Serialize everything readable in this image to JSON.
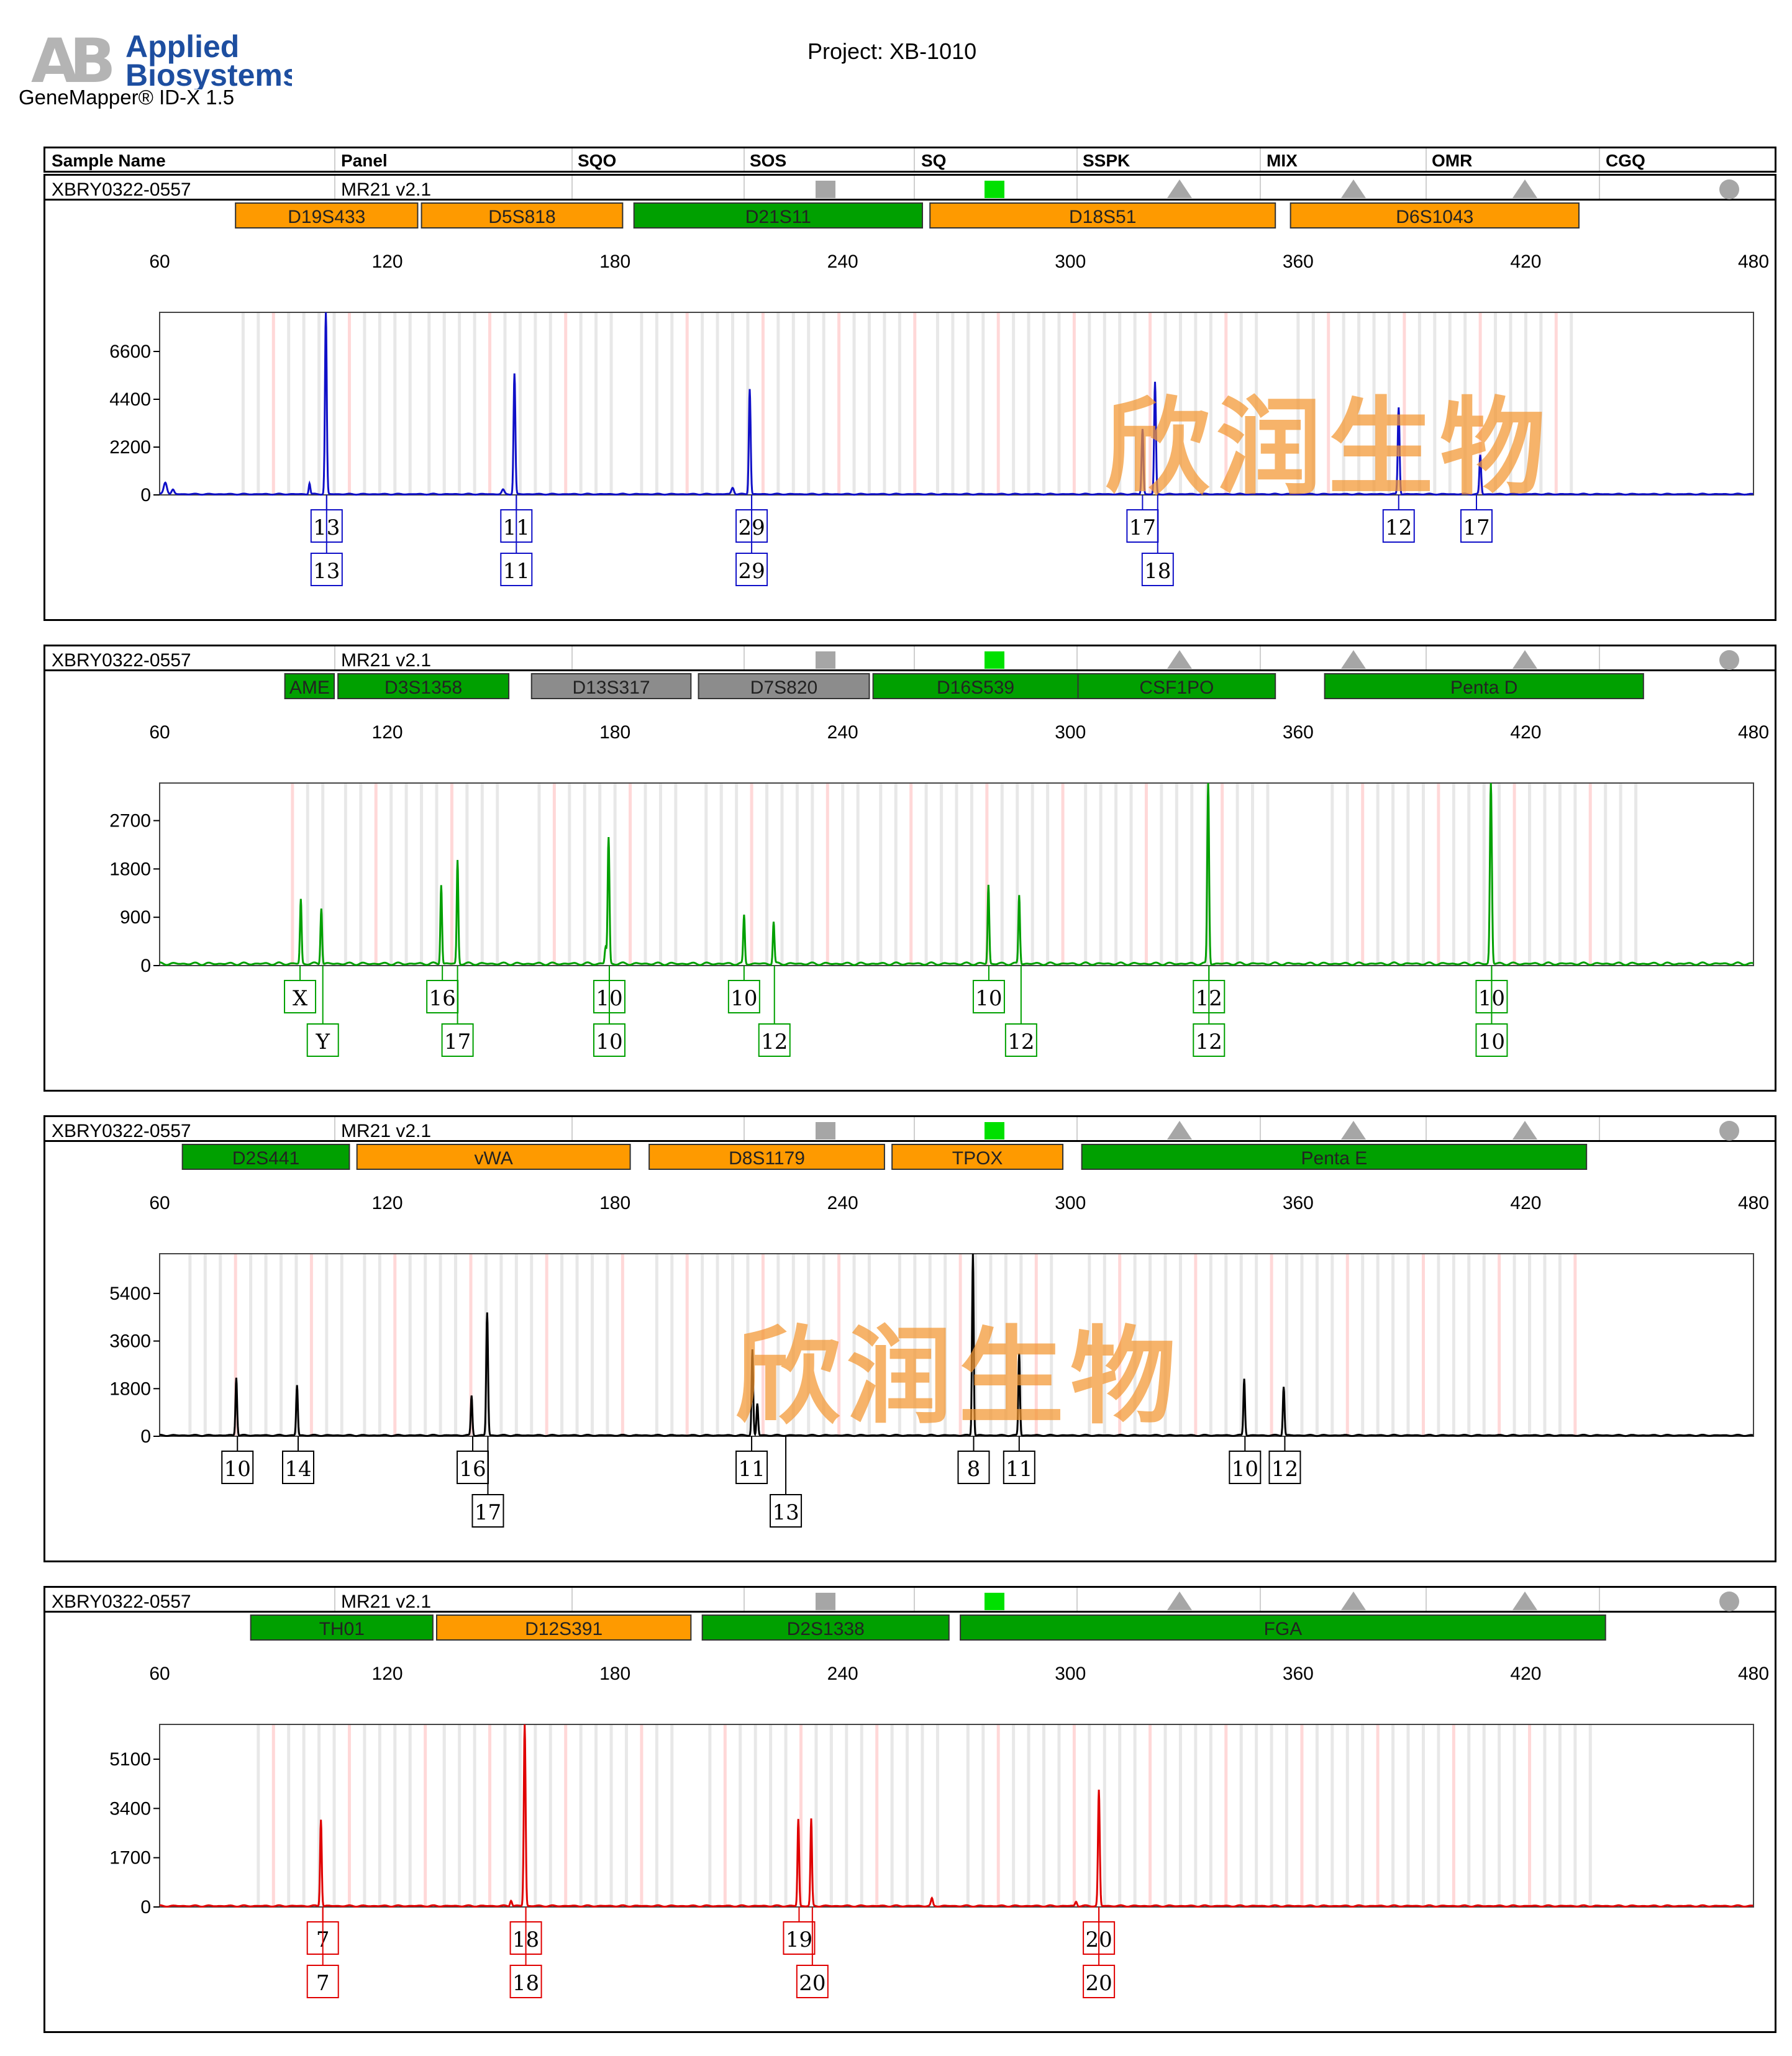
{
  "header": {
    "brand_line1": "Applied",
    "brand_line2": "Biosystems",
    "brand_mark": "AB",
    "software": "GeneMapper® ID-X  1.5",
    "project": "Project: XB-1010"
  },
  "columns": [
    "Sample Name",
    "Panel",
    "SQO",
    "SOS",
    "SQ",
    "SSPK",
    "MIX",
    "OMR",
    "CGQ"
  ],
  "watermark": "欣润生物",
  "colors": {
    "orange": "#fe9a00",
    "green": "#00a000",
    "gray": "#8c8c8c",
    "sq_green": "#00e000",
    "indicator_gray": "#a6a6a6",
    "grid_gray": "#e8e8e8",
    "grid_pink": "#ffd8d8"
  },
  "chart_data": [
    {
      "type": "line",
      "sample_name": "XBRY0322-0557",
      "panel": "MR21  v2.1",
      "dye_color": "#1010c8",
      "xlim": [
        60,
        480
      ],
      "x_ticks": [
        60,
        120,
        180,
        240,
        300,
        360,
        420,
        480
      ],
      "ylim": [
        0,
        8400
      ],
      "y_ticks": [
        0,
        2200,
        4400,
        6600
      ],
      "loci": [
        {
          "name": "D19S433",
          "start": 80,
          "end": 128,
          "color": "orange"
        },
        {
          "name": "D5S818",
          "start": 129,
          "end": 182,
          "color": "orange"
        },
        {
          "name": "D21S11",
          "start": 185,
          "end": 261,
          "color": "green"
        },
        {
          "name": "D18S51",
          "start": 263,
          "end": 354,
          "color": "orange"
        },
        {
          "name": "D6S1043",
          "start": 358,
          "end": 434,
          "color": "orange"
        }
      ],
      "peaks": [
        {
          "x": 61.5,
          "y": 550,
          "w": 1.0
        },
        {
          "x": 63.5,
          "y": 200,
          "w": 0.8
        },
        {
          "x": 99.5,
          "y": 500,
          "w": 0.5
        },
        {
          "x": 103.8,
          "y": 8400,
          "w": 0.55
        },
        {
          "x": 150.5,
          "y": 200,
          "w": 0.8
        },
        {
          "x": 153.5,
          "y": 5550,
          "w": 0.55
        },
        {
          "x": 211,
          "y": 300,
          "w": 0.8
        },
        {
          "x": 215.5,
          "y": 4850,
          "w": 0.55
        },
        {
          "x": 319,
          "y": 3000,
          "w": 0.55
        },
        {
          "x": 322.3,
          "y": 5150,
          "w": 0.55
        },
        {
          "x": 386.5,
          "y": 4000,
          "w": 0.55
        },
        {
          "x": 408,
          "y": 1800,
          "w": 0.55
        }
      ],
      "alleles": [
        {
          "text": "13",
          "x": 104,
          "row": 0
        },
        {
          "text": "13",
          "x": 104,
          "row": 1
        },
        {
          "text": "11",
          "x": 154,
          "row": 0
        },
        {
          "text": "11",
          "x": 154,
          "row": 1
        },
        {
          "text": "29",
          "x": 216,
          "row": 0
        },
        {
          "text": "29",
          "x": 216,
          "row": 1
        },
        {
          "text": "17",
          "x": 319,
          "row": 0
        },
        {
          "text": "18",
          "x": 323,
          "row": 1
        },
        {
          "text": "12",
          "x": 386.5,
          "row": 0
        },
        {
          "text": "17",
          "x": 407,
          "row": 0
        }
      ]
    },
    {
      "type": "line",
      "sample_name": "XBRY0322-0557",
      "panel": "MR21  v2.1",
      "dye_color": "#00a000",
      "xlim": [
        60,
        480
      ],
      "x_ticks": [
        60,
        120,
        180,
        240,
        300,
        360,
        420,
        480
      ],
      "ylim": [
        0,
        3400
      ],
      "y_ticks": [
        0,
        900,
        1800,
        2700
      ],
      "loci": [
        {
          "name": "AME",
          "start": 93,
          "end": 106,
          "color": "green"
        },
        {
          "name": "D3S1358",
          "start": 107,
          "end": 152,
          "color": "green"
        },
        {
          "name": "D13S317",
          "start": 158,
          "end": 200,
          "color": "gray"
        },
        {
          "name": "D7S820",
          "start": 202,
          "end": 247,
          "color": "gray"
        },
        {
          "name": "D16S539",
          "start": 248,
          "end": 302,
          "color": "green"
        },
        {
          "name": "CSF1PO",
          "start": 302,
          "end": 354,
          "color": "green"
        },
        {
          "name": "Penta D",
          "start": 367,
          "end": 451,
          "color": "green"
        }
      ],
      "peaks": [
        {
          "x": 97.2,
          "y": 1200,
          "w": 0.5
        },
        {
          "x": 102.6,
          "y": 1050,
          "w": 0.5
        },
        {
          "x": 134.2,
          "y": 1480,
          "w": 0.5
        },
        {
          "x": 138.5,
          "y": 1930,
          "w": 0.5
        },
        {
          "x": 178.3,
          "y": 2350,
          "w": 0.55
        },
        {
          "x": 177.5,
          "y": 300,
          "w": 0.5
        },
        {
          "x": 214,
          "y": 900,
          "w": 0.5
        },
        {
          "x": 221.8,
          "y": 780,
          "w": 0.5
        },
        {
          "x": 278.4,
          "y": 1470,
          "w": 0.5
        },
        {
          "x": 286.5,
          "y": 1280,
          "w": 0.5
        },
        {
          "x": 336.3,
          "y": 3400,
          "w": 0.55
        },
        {
          "x": 410.8,
          "y": 3400,
          "w": 0.6
        }
      ],
      "alleles": [
        {
          "text": "X",
          "x": 97,
          "row": 0
        },
        {
          "text": "Y",
          "x": 103,
          "row": 1
        },
        {
          "text": "16",
          "x": 134.5,
          "row": 0
        },
        {
          "text": "17",
          "x": 138.5,
          "row": 1
        },
        {
          "text": "10",
          "x": 178.5,
          "row": 0
        },
        {
          "text": "10",
          "x": 178.5,
          "row": 1
        },
        {
          "text": "10",
          "x": 214,
          "row": 0
        },
        {
          "text": "12",
          "x": 222,
          "row": 1
        },
        {
          "text": "10",
          "x": 278.5,
          "row": 0
        },
        {
          "text": "12",
          "x": 287,
          "row": 1
        },
        {
          "text": "12",
          "x": 336.5,
          "row": 0
        },
        {
          "text": "12",
          "x": 336.5,
          "row": 1
        },
        {
          "text": "10",
          "x": 411,
          "row": 0
        },
        {
          "text": "10",
          "x": 411,
          "row": 1
        }
      ]
    },
    {
      "type": "line",
      "sample_name": "XBRY0322-0557",
      "panel": "MR21  v2.1",
      "dye_color": "#000000",
      "xlim": [
        60,
        480
      ],
      "x_ticks": [
        60,
        120,
        180,
        240,
        300,
        360,
        420,
        480
      ],
      "ylim": [
        0,
        6900
      ],
      "y_ticks": [
        0,
        1800,
        3600,
        5400
      ],
      "loci": [
        {
          "name": "D2S441",
          "start": 66,
          "end": 110,
          "color": "green"
        },
        {
          "name": "vWA",
          "start": 112,
          "end": 184,
          "color": "orange"
        },
        {
          "name": "D8S1179",
          "start": 189,
          "end": 251,
          "color": "orange"
        },
        {
          "name": "TPOX",
          "start": 253,
          "end": 298,
          "color": "orange"
        },
        {
          "name": "Penta E",
          "start": 303,
          "end": 436,
          "color": "green"
        }
      ],
      "peaks": [
        {
          "x": 80.2,
          "y": 2200,
          "w": 0.5
        },
        {
          "x": 96.2,
          "y": 1900,
          "w": 0.5
        },
        {
          "x": 142.2,
          "y": 1500,
          "w": 0.5
        },
        {
          "x": 146.3,
          "y": 4650,
          "w": 0.55
        },
        {
          "x": 216.2,
          "y": 3250,
          "w": 0.5
        },
        {
          "x": 217.5,
          "y": 1200,
          "w": 0.5
        },
        {
          "x": 274.3,
          "y": 6900,
          "w": 0.5
        },
        {
          "x": 286.5,
          "y": 3100,
          "w": 0.5
        },
        {
          "x": 345.8,
          "y": 2150,
          "w": 0.5
        },
        {
          "x": 356.2,
          "y": 1850,
          "w": 0.5
        }
      ],
      "alleles": [
        {
          "text": "10",
          "x": 80.5,
          "row": 0
        },
        {
          "text": "14",
          "x": 96.5,
          "row": 0
        },
        {
          "text": "16",
          "x": 142.5,
          "row": 0
        },
        {
          "text": "17",
          "x": 146.5,
          "row": 1
        },
        {
          "text": "11",
          "x": 216,
          "row": 0
        },
        {
          "text": "13",
          "x": 225,
          "row": 1
        },
        {
          "text": "8",
          "x": 274.5,
          "row": 0
        },
        {
          "text": "11",
          "x": 286.5,
          "row": 0
        },
        {
          "text": "10",
          "x": 346,
          "row": 0
        },
        {
          "text": "12",
          "x": 356.5,
          "row": 0
        }
      ]
    },
    {
      "type": "line",
      "sample_name": "XBRY0322-0557",
      "panel": "MR21  v2.1",
      "dye_color": "#e00000",
      "xlim": [
        60,
        480
      ],
      "x_ticks": [
        60,
        120,
        180,
        240,
        300,
        360,
        420,
        480
      ],
      "ylim": [
        0,
        6300
      ],
      "y_ticks": [
        0,
        1700,
        3400,
        5100
      ],
      "loci": [
        {
          "name": "TH01",
          "start": 84,
          "end": 132,
          "color": "green"
        },
        {
          "name": "D12S391",
          "start": 133,
          "end": 200,
          "color": "orange"
        },
        {
          "name": "D2S1338",
          "start": 203,
          "end": 268,
          "color": "green"
        },
        {
          "name": "FGA",
          "start": 271,
          "end": 441,
          "color": "green"
        }
      ],
      "peaks": [
        {
          "x": 102.5,
          "y": 3000,
          "w": 0.5
        },
        {
          "x": 152.6,
          "y": 200,
          "w": 0.6
        },
        {
          "x": 156.2,
          "y": 6300,
          "w": 0.55
        },
        {
          "x": 228.3,
          "y": 3000,
          "w": 0.5
        },
        {
          "x": 231.7,
          "y": 3000,
          "w": 0.5
        },
        {
          "x": 263.5,
          "y": 250,
          "w": 0.6
        },
        {
          "x": 301.5,
          "y": 150,
          "w": 0.6
        },
        {
          "x": 307.5,
          "y": 4000,
          "w": 0.55
        }
      ],
      "alleles": [
        {
          "text": "7",
          "x": 103,
          "row": 0
        },
        {
          "text": "7",
          "x": 103,
          "row": 1
        },
        {
          "text": "18",
          "x": 156.5,
          "row": 0
        },
        {
          "text": "18",
          "x": 156.5,
          "row": 1
        },
        {
          "text": "19",
          "x": 228.5,
          "row": 0
        },
        {
          "text": "20",
          "x": 232,
          "row": 1
        },
        {
          "text": "20",
          "x": 307.5,
          "row": 0
        },
        {
          "text": "20",
          "x": 307.5,
          "row": 1
        }
      ]
    }
  ]
}
